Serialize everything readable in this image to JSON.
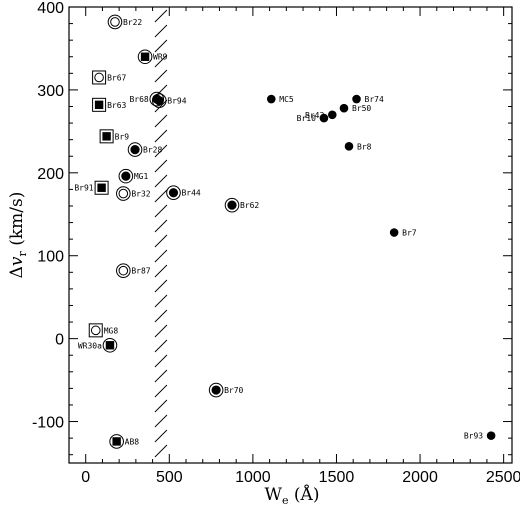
{
  "chart_data": {
    "type": "scatter",
    "xlabel": "W_e (Å)",
    "xlabel_main": "W",
    "xlabel_sub": "e",
    "xlabel_unit": " (Å)",
    "ylabel": "Δv_r (km/s)",
    "ylabel_prefix": "Δ",
    "ylabel_var": "v",
    "ylabel_sub": "r",
    "ylabel_unit": " (km/s)",
    "xlim": [
      -100,
      2550
    ],
    "ylim": [
      -150,
      400
    ],
    "xticks": [
      0,
      500,
      1000,
      1500,
      2000,
      2500
    ],
    "yticks": [
      -100,
      0,
      100,
      200,
      300,
      400
    ],
    "xtick_minor": 100,
    "ytick_minor": 20,
    "grid": false,
    "hatched_region_x": 450,
    "legend": "none",
    "marker_key": {
      "filled-circle": "filled circle",
      "ringed-circle": "filled circle inside an open circle",
      "open-circle": "open circle inside an open circle",
      "boxed-square": "filled square inside an open square",
      "boxed-circle": "open circle inside an open square",
      "circled-square": "filled square inside an open circle"
    },
    "points": [
      {
        "label": "Br22",
        "x": 175,
        "y": 382,
        "marker": "open-circle"
      },
      {
        "label": "WR9",
        "x": 355,
        "y": 340,
        "marker": "circled-square"
      },
      {
        "label": "Br67",
        "x": 80,
        "y": 315,
        "marker": "boxed-circle"
      },
      {
        "label": "Br63",
        "x": 80,
        "y": 282,
        "marker": "boxed-square"
      },
      {
        "label": "Br68",
        "x": 425,
        "y": 289,
        "marker": "ringed-circle"
      },
      {
        "label": "Br94",
        "x": 440,
        "y": 287,
        "marker": "ringed-circle"
      },
      {
        "label": "Br9",
        "x": 125,
        "y": 244,
        "marker": "boxed-square"
      },
      {
        "label": "Br28",
        "x": 295,
        "y": 228,
        "marker": "ringed-circle"
      },
      {
        "label": "Br91",
        "x": 95,
        "y": 182,
        "marker": "boxed-square"
      },
      {
        "label": "MG1",
        "x": 240,
        "y": 196,
        "marker": "ringed-circle"
      },
      {
        "label": "Br32",
        "x": 225,
        "y": 175,
        "marker": "open-circle"
      },
      {
        "label": "Br44",
        "x": 525,
        "y": 176,
        "marker": "ringed-circle"
      },
      {
        "label": "Br62",
        "x": 875,
        "y": 161,
        "marker": "ringed-circle"
      },
      {
        "label": "Br87",
        "x": 225,
        "y": 82,
        "marker": "open-circle"
      },
      {
        "label": "MG8",
        "x": 60,
        "y": 10,
        "marker": "boxed-circle"
      },
      {
        "label": "WR30a",
        "x": 145,
        "y": -8,
        "marker": "circled-square"
      },
      {
        "label": "Br70",
        "x": 780,
        "y": -62,
        "marker": "ringed-circle"
      },
      {
        "label": "AB8",
        "x": 185,
        "y": -124,
        "marker": "circled-square"
      },
      {
        "label": "MC5",
        "x": 1110,
        "y": 289,
        "marker": "filled-circle"
      },
      {
        "label": "Br74",
        "x": 1620,
        "y": 289,
        "marker": "filled-circle"
      },
      {
        "label": "Br43",
        "x": 1475,
        "y": 270,
        "marker": "filled-circle"
      },
      {
        "label": "Br50",
        "x": 1545,
        "y": 278,
        "marker": "filled-circle"
      },
      {
        "label": "Br10",
        "x": 1425,
        "y": 266,
        "marker": "filled-circle"
      },
      {
        "label": "Br8",
        "x": 1575,
        "y": 232,
        "marker": "filled-circle"
      },
      {
        "label": "Br7",
        "x": 1845,
        "y": 128,
        "marker": "filled-circle"
      },
      {
        "label": "Br93",
        "x": 2425,
        "y": -117,
        "marker": "filled-circle"
      }
    ],
    "label_side": {
      "Br22": "right",
      "WR9": "right",
      "Br67": "right",
      "Br63": "right",
      "Br68": "left",
      "Br94": "right",
      "Br9": "right",
      "Br28": "right",
      "Br91": "left",
      "MG1": "right",
      "Br32": "right",
      "Br44": "right",
      "Br62": "right",
      "Br87": "right",
      "MG8": "right",
      "WR30a": "left",
      "Br70": "right",
      "AB8": "right",
      "MC5": "right",
      "Br74": "right",
      "Br43": "left",
      "Br50": "right",
      "Br10": "left",
      "Br8": "right",
      "Br7": "right",
      "Br93": "left"
    }
  }
}
